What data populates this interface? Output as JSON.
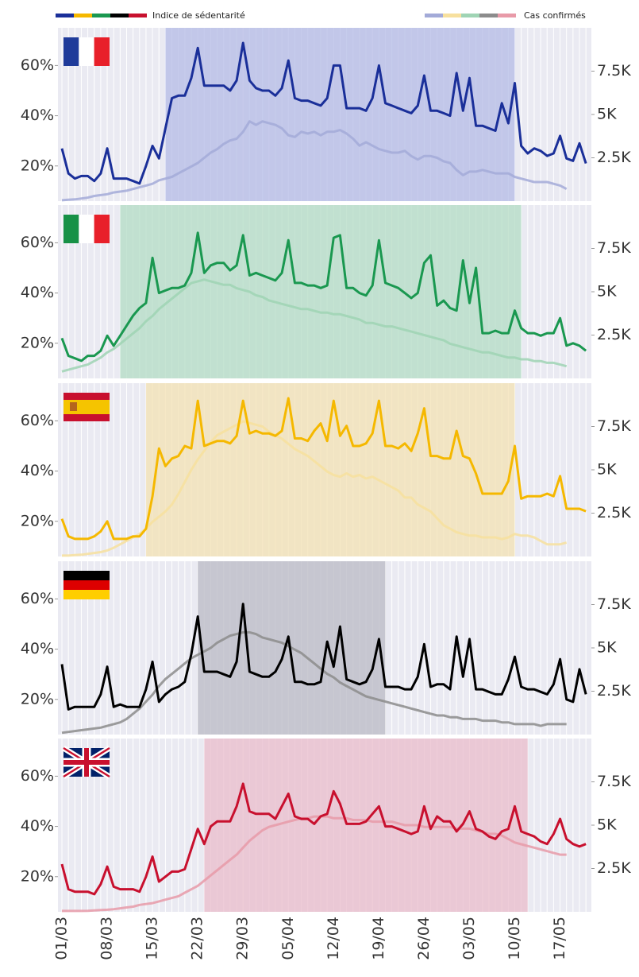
{
  "legend": {
    "left": {
      "label": "Indice de sédentarité",
      "colors": [
        "#1a2f99",
        "#f5b800",
        "#1a9850",
        "#000000",
        "#c8102e"
      ]
    },
    "right": {
      "label": "Cas confirmés",
      "colors": [
        "#a3aad8",
        "#f7e09e",
        "#9fd4b4",
        "#8c8c8c",
        "#e89aa8"
      ]
    }
  },
  "x_axis": {
    "categories": [
      "01/03",
      null,
      null,
      null,
      null,
      null,
      null,
      "08/03",
      null,
      null,
      null,
      null,
      null,
      null,
      "15/03",
      null,
      null,
      null,
      null,
      null,
      null,
      "22/03",
      null,
      null,
      null,
      null,
      null,
      null,
      "29/03",
      null,
      null,
      null,
      null,
      null,
      null,
      "05/04",
      null,
      null,
      null,
      null,
      null,
      null,
      "12/04",
      null,
      null,
      null,
      null,
      null,
      null,
      "19/04",
      null,
      null,
      null,
      null,
      null,
      null,
      "26/04",
      null,
      null,
      null,
      null,
      null,
      null,
      "03/05",
      null,
      null,
      null,
      null,
      null,
      null,
      "10/05",
      null,
      null,
      null,
      null,
      null,
      null,
      "17/05",
      null,
      null,
      null,
      null
    ]
  },
  "chart_data": [
    {
      "type": "line",
      "ylim": [
        6,
        75
      ],
      "yticks": [
        {
          "value": 20,
          "label": "20%"
        },
        {
          "value": 40,
          "label": "40%"
        },
        {
          "value": 60,
          "label": "60%"
        }
      ],
      "y2lim": [
        0,
        10000
      ],
      "y2ticks": [
        {
          "value": 2500,
          "label": "2.5K"
        },
        {
          "value": 5000,
          "label": "5K"
        },
        {
          "value": 7500,
          "label": "7.5K"
        }
      ],
      "shade": [
        16,
        70
      ],
      "shade_color": "#b4bbe6",
      "series": [
        {
          "color": "#1a2f99",
          "values": [
            27,
            17,
            15,
            16,
            16,
            14,
            17,
            27,
            15,
            15,
            15,
            14,
            13,
            20,
            28,
            23,
            35,
            47,
            48,
            48,
            55,
            67,
            52,
            52,
            52,
            52,
            50,
            54,
            69,
            54,
            51,
            50,
            50,
            48,
            51,
            62,
            47,
            46,
            46,
            45,
            44,
            47,
            60,
            60,
            43,
            43,
            43,
            42,
            47,
            60,
            45,
            44,
            43,
            42,
            41,
            44,
            56,
            42,
            42,
            41,
            40,
            57,
            42,
            55,
            36,
            36,
            35,
            34,
            45,
            37,
            53,
            28,
            25,
            27,
            26,
            24,
            25,
            32,
            23,
            22,
            29,
            21
          ]
        },
        {
          "color": "#a3aad8",
          "axis": "y2",
          "values": [
            50,
            80,
            100,
            150,
            200,
            300,
            350,
            400,
            500,
            550,
            600,
            700,
            800,
            900,
            1000,
            1200,
            1300,
            1400,
            1600,
            1800,
            2000,
            2200,
            2500,
            2800,
            3000,
            3300,
            3500,
            3600,
            4000,
            4600,
            4400,
            4600,
            4500,
            4400,
            4200,
            3800,
            3700,
            4000,
            3900,
            4000,
            3800,
            4000,
            4000,
            4100,
            3900,
            3600,
            3200,
            3400,
            3200,
            3000,
            2900,
            2800,
            2800,
            2900,
            2600,
            2400,
            2600,
            2600,
            2500,
            2300,
            2200,
            1800,
            1500,
            1700,
            1700,
            1800,
            1700,
            1600,
            1600,
            1600,
            1400,
            1300,
            1200,
            1100,
            1100,
            1100,
            1000,
            900,
            700,
            null,
            null,
            null
          ]
        }
      ]
    },
    {
      "type": "line",
      "ylim": [
        6,
        75
      ],
      "yticks": [
        {
          "value": 20,
          "label": "20%"
        },
        {
          "value": 40,
          "label": "40%"
        },
        {
          "value": 60,
          "label": "60%"
        }
      ],
      "y2lim": [
        0,
        10000
      ],
      "y2ticks": [
        {
          "value": 2500,
          "label": "2.5K"
        },
        {
          "value": 5000,
          "label": "5K"
        },
        {
          "value": 7500,
          "label": "7.5K"
        }
      ],
      "shade": [
        9,
        71
      ],
      "shade_color": "#b3dcc4",
      "series": [
        {
          "color": "#1a9850",
          "values": [
            22,
            15,
            14,
            13,
            15,
            15,
            17,
            23,
            19,
            23,
            27,
            31,
            34,
            36,
            54,
            40,
            41,
            42,
            42,
            43,
            48,
            64,
            48,
            51,
            52,
            52,
            49,
            51,
            63,
            47,
            48,
            47,
            46,
            45,
            48,
            61,
            44,
            44,
            43,
            43,
            42,
            43,
            62,
            63,
            42,
            42,
            40,
            39,
            43,
            61,
            44,
            43,
            42,
            40,
            38,
            40,
            52,
            55,
            35,
            37,
            34,
            33,
            53,
            36,
            50,
            24,
            24,
            25,
            24,
            24,
            33,
            26,
            24,
            24,
            23,
            24,
            24,
            30,
            19,
            20,
            19,
            17
          ]
        },
        {
          "color": "#9fd4b4",
          "axis": "y2",
          "values": [
            400,
            500,
            600,
            700,
            800,
            1000,
            1200,
            1500,
            1700,
            2000,
            2300,
            2600,
            2900,
            3300,
            3600,
            4000,
            4300,
            4600,
            4900,
            5200,
            5500,
            5600,
            5700,
            5600,
            5500,
            5400,
            5400,
            5200,
            5100,
            5000,
            4800,
            4700,
            4500,
            4400,
            4300,
            4200,
            4100,
            4000,
            4000,
            3900,
            3800,
            3800,
            3700,
            3700,
            3600,
            3500,
            3400,
            3200,
            3200,
            3100,
            3000,
            3000,
            2900,
            2800,
            2700,
            2600,
            2500,
            2400,
            2300,
            2200,
            2000,
            1900,
            1800,
            1700,
            1600,
            1500,
            1500,
            1400,
            1300,
            1200,
            1200,
            1100,
            1100,
            1000,
            1000,
            900,
            900,
            800,
            700,
            null,
            null,
            null
          ]
        }
      ]
    },
    {
      "type": "line",
      "ylim": [
        6,
        75
      ],
      "yticks": [
        {
          "value": 20,
          "label": "20%"
        },
        {
          "value": 40,
          "label": "40%"
        },
        {
          "value": 60,
          "label": "60%"
        }
      ],
      "y2lim": [
        0,
        10000
      ],
      "y2ticks": [
        {
          "value": 2500,
          "label": "2.5K"
        },
        {
          "value": 5000,
          "label": "5K"
        },
        {
          "value": 7500,
          "label": "7.5K"
        }
      ],
      "shade": [
        13,
        70
      ],
      "shade_color": "#f3e2b3",
      "series": [
        {
          "color": "#f5b800",
          "values": [
            21,
            14,
            13,
            13,
            13,
            14,
            16,
            20,
            13,
            13,
            13,
            14,
            14,
            17,
            30,
            49,
            42,
            45,
            46,
            50,
            49,
            68,
            50,
            51,
            52,
            52,
            51,
            54,
            68,
            55,
            56,
            55,
            55,
            54,
            56,
            69,
            53,
            53,
            52,
            56,
            59,
            52,
            68,
            54,
            58,
            50,
            50,
            51,
            55,
            68,
            50,
            50,
            49,
            51,
            48,
            55,
            65,
            46,
            46,
            45,
            45,
            56,
            46,
            45,
            39,
            31,
            31,
            31,
            31,
            36,
            50,
            29,
            30,
            30,
            30,
            31,
            30,
            38,
            25,
            25,
            25,
            24
          ]
        },
        {
          "color": "#f7e09e",
          "axis": "y2",
          "values": [
            50,
            50,
            80,
            100,
            150,
            200,
            250,
            350,
            500,
            700,
            900,
            1100,
            1300,
            1600,
            2000,
            2300,
            2600,
            3000,
            3600,
            4300,
            5000,
            5600,
            6100,
            6600,
            7000,
            7200,
            7400,
            7600,
            7800,
            7700,
            7600,
            7500,
            7200,
            7000,
            6800,
            6500,
            6200,
            6000,
            5800,
            5500,
            5200,
            4900,
            4700,
            4600,
            4800,
            4600,
            4700,
            4500,
            4600,
            4400,
            4200,
            4000,
            3800,
            3400,
            3400,
            3000,
            2800,
            2600,
            2200,
            1800,
            1600,
            1400,
            1300,
            1200,
            1200,
            1100,
            1100,
            1100,
            1000,
            1100,
            1300,
            1200,
            1200,
            1100,
            900,
            700,
            700,
            700,
            800,
            null,
            null,
            null
          ]
        }
      ]
    },
    {
      "type": "line",
      "ylim": [
        6,
        75
      ],
      "yticks": [
        {
          "value": 20,
          "label": "20%"
        },
        {
          "value": 40,
          "label": "40%"
        },
        {
          "value": 60,
          "label": "60%"
        }
      ],
      "y2lim": [
        0,
        10000
      ],
      "y2ticks": [
        {
          "value": 2500,
          "label": "2.5K"
        },
        {
          "value": 5000,
          "label": "5K"
        },
        {
          "value": 7500,
          "label": "7.5K"
        }
      ],
      "shade": [
        21,
        50
      ],
      "shade_color": "#b9b9c4",
      "series": [
        {
          "color": "#000000",
          "values": [
            34,
            16,
            17,
            17,
            17,
            17,
            22,
            33,
            17,
            18,
            17,
            17,
            17,
            24,
            35,
            19,
            22,
            24,
            25,
            27,
            38,
            53,
            31,
            31,
            31,
            30,
            29,
            35,
            58,
            31,
            30,
            29,
            29,
            31,
            36,
            45,
            27,
            27,
            26,
            26,
            27,
            43,
            33,
            49,
            28,
            27,
            26,
            27,
            32,
            44,
            25,
            25,
            25,
            24,
            24,
            29,
            42,
            25,
            26,
            26,
            24,
            45,
            29,
            44,
            24,
            24,
            23,
            22,
            22,
            28,
            37,
            25,
            24,
            24,
            23,
            22,
            26,
            36,
            20,
            19,
            32,
            22
          ]
        },
        {
          "color": "#8c8c8c",
          "axis": "y2",
          "values": [
            100,
            150,
            200,
            250,
            300,
            350,
            400,
            500,
            600,
            700,
            900,
            1200,
            1500,
            1900,
            2300,
            2800,
            3200,
            3500,
            3800,
            4100,
            4400,
            4600,
            4800,
            5000,
            5300,
            5500,
            5700,
            5800,
            5900,
            5900,
            5800,
            5600,
            5500,
            5400,
            5300,
            5100,
            4900,
            4700,
            4400,
            4100,
            3800,
            3500,
            3300,
            3000,
            2800,
            2600,
            2400,
            2200,
            2100,
            2000,
            1900,
            1800,
            1700,
            1600,
            1500,
            1400,
            1300,
            1200,
            1100,
            1100,
            1000,
            1000,
            900,
            900,
            900,
            800,
            800,
            800,
            700,
            700,
            600,
            600,
            600,
            600,
            500,
            600,
            600,
            600,
            600,
            null,
            null,
            null
          ]
        }
      ]
    },
    {
      "type": "line",
      "ylim": [
        6,
        75
      ],
      "yticks": [
        {
          "value": 20,
          "label": "20%"
        },
        {
          "value": 40,
          "label": "40%"
        },
        {
          "value": 60,
          "label": "60%"
        }
      ],
      "y2lim": [
        0,
        10000
      ],
      "y2ticks": [
        {
          "value": 2500,
          "label": "2.5K"
        },
        {
          "value": 5000,
          "label": "5K"
        },
        {
          "value": 7500,
          "label": "7.5K"
        }
      ],
      "shade": [
        22,
        72
      ],
      "shade_color": "#e9bccb",
      "series": [
        {
          "color": "#c8102e",
          "values": [
            25,
            15,
            14,
            14,
            14,
            13,
            17,
            24,
            16,
            15,
            15,
            15,
            14,
            20,
            28,
            18,
            20,
            22,
            22,
            23,
            31,
            39,
            33,
            40,
            42,
            42,
            42,
            48,
            57,
            46,
            45,
            45,
            45,
            43,
            48,
            53,
            44,
            43,
            43,
            41,
            44,
            45,
            54,
            49,
            41,
            41,
            41,
            42,
            45,
            48,
            40,
            40,
            39,
            38,
            37,
            38,
            48,
            39,
            44,
            42,
            42,
            38,
            41,
            46,
            39,
            38,
            36,
            35,
            38,
            39,
            48,
            38,
            37,
            36,
            34,
            33,
            37,
            43,
            35,
            33,
            32,
            33
          ]
        },
        {
          "color": "#e89aa8",
          "axis": "y2",
          "values": [
            50,
            50,
            50,
            50,
            60,
            80,
            100,
            120,
            150,
            200,
            250,
            300,
            400,
            450,
            500,
            600,
            700,
            800,
            900,
            1100,
            1300,
            1500,
            1800,
            2100,
            2400,
            2700,
            3000,
            3300,
            3700,
            4100,
            4400,
            4700,
            4900,
            5000,
            5100,
            5200,
            5300,
            5400,
            5400,
            5500,
            5500,
            5500,
            5400,
            5400,
            5400,
            5300,
            5300,
            5300,
            5200,
            5200,
            5200,
            5200,
            5100,
            5000,
            5000,
            5000,
            4900,
            4900,
            4900,
            4900,
            4900,
            4800,
            4800,
            4800,
            4700,
            4600,
            4500,
            4500,
            4400,
            4200,
            4000,
            3900,
            3800,
            3700,
            3600,
            3500,
            3400,
            3300,
            3300,
            null,
            null,
            null
          ]
        }
      ]
    }
  ]
}
